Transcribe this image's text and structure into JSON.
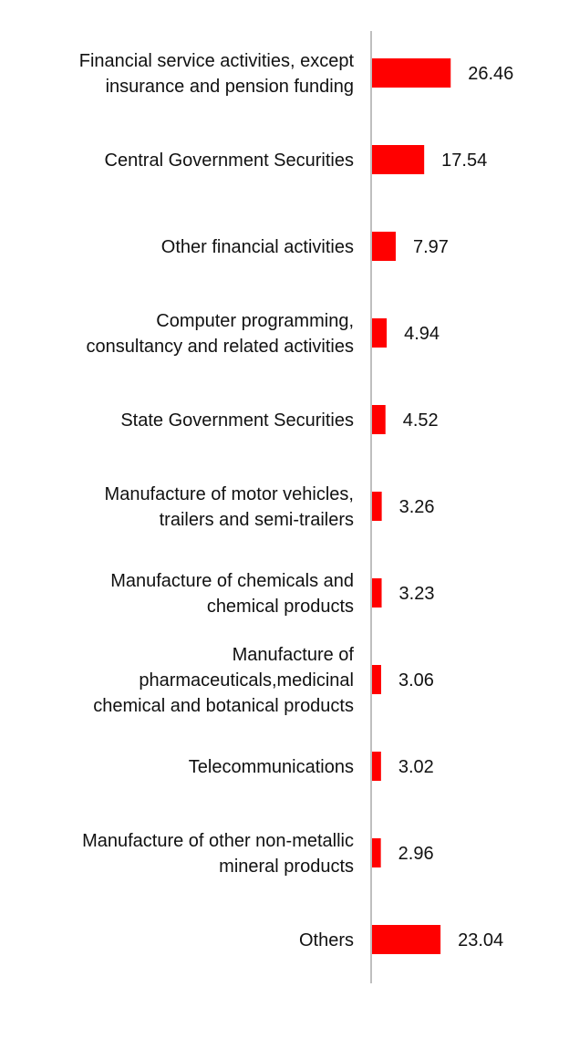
{
  "chart_data": {
    "type": "bar",
    "orientation": "horizontal",
    "categories": [
      [
        "Financial service activities, except",
        "insurance and pension funding"
      ],
      [
        "Central Government Securities"
      ],
      [
        "Other financial activities"
      ],
      [
        "Computer programming,",
        "consultancy and related activities"
      ],
      [
        "State Government Securities"
      ],
      [
        "Manufacture of motor vehicles,",
        "trailers and semi-trailers"
      ],
      [
        "Manufacture of chemicals and",
        "chemical products"
      ],
      [
        "Manufacture of",
        "pharmaceuticals,medicinal",
        "chemical and botanical products"
      ],
      [
        "Telecommunications"
      ],
      [
        "Manufacture of other non-metallic",
        "mineral products"
      ],
      [
        "Others"
      ]
    ],
    "values": [
      26.46,
      17.54,
      7.97,
      4.94,
      4.52,
      3.26,
      3.23,
      3.06,
      3.02,
      2.96,
      23.04
    ],
    "value_labels": [
      "26.46",
      "17.54",
      "7.97",
      "4.94",
      "4.52",
      "3.26",
      "3.23",
      "3.06",
      "3.02",
      "2.96",
      "23.04"
    ],
    "title": "",
    "xlabel": "",
    "ylabel": "",
    "xlim": [
      0,
      100
    ],
    "grid": false,
    "legend": "none",
    "bar_color": "#ff0000",
    "axis_color": "#bfbfbf"
  }
}
